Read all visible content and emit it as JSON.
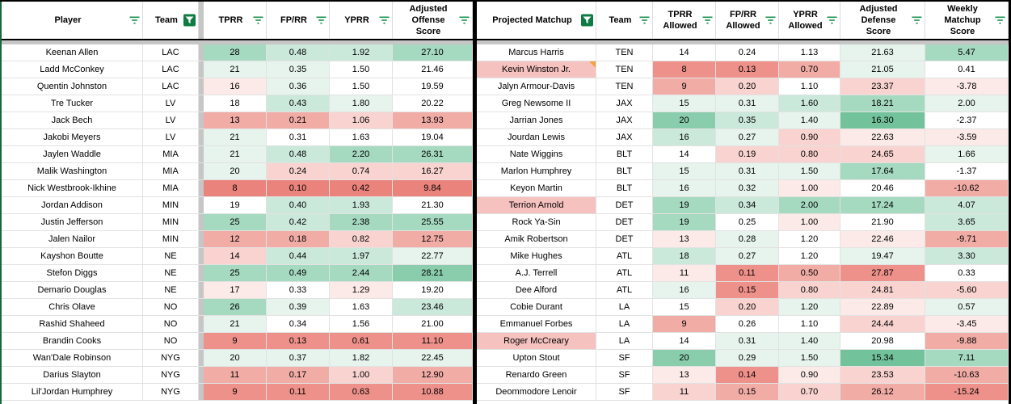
{
  "palette": {
    "5": "#72C39C",
    "4": "#8ACDAC",
    "3": "#A5D9C0",
    "2": "#CBE9DA",
    "1": "#E6F4ED",
    "0": "#FFFFFF",
    "-1": "#FCEAE8",
    "-2": "#F8D3CF",
    "-3": "#F2ACA6",
    "-4": "#EE918A",
    "-5": "#EA837B"
  },
  "highlight_pink": "#F5C2BF",
  "note_color": "#F2A33C",
  "icon_green": "#18934E",
  "filter_button_green": "#0E7C42",
  "left_table": {
    "headers": [
      {
        "label": "Player",
        "icon": "filter-lines"
      },
      {
        "label": "Team",
        "icon": "filter-active"
      },
      {
        "label": "TPRR",
        "icon": "filter-lines"
      },
      {
        "label": "FP/RR",
        "icon": "filter-lines"
      },
      {
        "label": "YPRR",
        "icon": "filter-lines"
      },
      {
        "label": "Adjusted\nOffense\nScore",
        "icon": "filter-lines"
      }
    ],
    "rows": [
      {
        "name": "Keenan Allen",
        "team": "LAC",
        "vals": [
          "28",
          "0.48",
          "1.92",
          "27.10"
        ],
        "tones": [
          3,
          2,
          2,
          3
        ]
      },
      {
        "name": "Ladd McConkey",
        "team": "LAC",
        "vals": [
          "21",
          "0.35",
          "1.50",
          "21.46"
        ],
        "tones": [
          1,
          1,
          0,
          0
        ]
      },
      {
        "name": "Quentin Johnston",
        "team": "LAC",
        "vals": [
          "16",
          "0.36",
          "1.50",
          "19.59"
        ],
        "tones": [
          -1,
          1,
          0,
          0
        ]
      },
      {
        "name": "Tre Tucker",
        "team": "LV",
        "vals": [
          "18",
          "0.43",
          "1.80",
          "20.22"
        ],
        "tones": [
          0,
          2,
          1,
          0
        ]
      },
      {
        "name": "Jack Bech",
        "team": "LV",
        "vals": [
          "13",
          "0.21",
          "1.06",
          "13.93"
        ],
        "tones": [
          -3,
          -3,
          -2,
          -3
        ]
      },
      {
        "name": "Jakobi Meyers",
        "team": "LV",
        "vals": [
          "21",
          "0.31",
          "1.63",
          "19.04"
        ],
        "tones": [
          1,
          0,
          0,
          0
        ]
      },
      {
        "name": "Jaylen Waddle",
        "team": "MIA",
        "vals": [
          "21",
          "0.48",
          "2.20",
          "26.31"
        ],
        "tones": [
          1,
          2,
          3,
          3
        ]
      },
      {
        "name": "Malik Washington",
        "team": "MIA",
        "vals": [
          "20",
          "0.24",
          "0.74",
          "16.27"
        ],
        "tones": [
          1,
          -2,
          -2,
          -2
        ]
      },
      {
        "name": "Nick Westbrook-Ikhine",
        "team": "MIA",
        "vals": [
          "8",
          "0.10",
          "0.42",
          "9.84"
        ],
        "tones": [
          -5,
          -5,
          -5,
          -5
        ]
      },
      {
        "name": "Jordan Addison",
        "team": "MIN",
        "vals": [
          "19",
          "0.40",
          "1.93",
          "21.30"
        ],
        "tones": [
          0,
          2,
          2,
          0
        ]
      },
      {
        "name": "Justin Jefferson",
        "team": "MIN",
        "vals": [
          "25",
          "0.42",
          "2.38",
          "25.55"
        ],
        "tones": [
          3,
          2,
          3,
          3
        ]
      },
      {
        "name": "Jalen Nailor",
        "team": "MIN",
        "vals": [
          "12",
          "0.18",
          "0.82",
          "12.75"
        ],
        "tones": [
          -3,
          -3,
          -2,
          -3
        ]
      },
      {
        "name": "Kayshon Boutte",
        "team": "NE",
        "vals": [
          "14",
          "0.44",
          "1.97",
          "22.77"
        ],
        "tones": [
          -2,
          2,
          2,
          1
        ]
      },
      {
        "name": "Stefon Diggs",
        "team": "NE",
        "vals": [
          "25",
          "0.49",
          "2.44",
          "28.21"
        ],
        "tones": [
          3,
          3,
          3,
          4
        ]
      },
      {
        "name": "Demario Douglas",
        "team": "NE",
        "vals": [
          "17",
          "0.33",
          "1.29",
          "19.20"
        ],
        "tones": [
          -1,
          0,
          -1,
          0
        ]
      },
      {
        "name": "Chris Olave",
        "team": "NO",
        "vals": [
          "26",
          "0.39",
          "1.63",
          "23.46"
        ],
        "tones": [
          3,
          1,
          0,
          2
        ]
      },
      {
        "name": "Rashid Shaheed",
        "team": "NO",
        "vals": [
          "21",
          "0.34",
          "1.56",
          "21.00"
        ],
        "tones": [
          1,
          0,
          0,
          0
        ]
      },
      {
        "name": "Brandin Cooks",
        "team": "NO",
        "vals": [
          "9",
          "0.13",
          "0.61",
          "11.10"
        ],
        "tones": [
          -4,
          -4,
          -4,
          -4
        ]
      },
      {
        "name": "Wan'Dale Robinson",
        "team": "NYG",
        "vals": [
          "20",
          "0.37",
          "1.82",
          "22.45"
        ],
        "tones": [
          1,
          1,
          1,
          1
        ]
      },
      {
        "name": "Darius Slayton",
        "team": "NYG",
        "vals": [
          "11",
          "0.17",
          "1.00",
          "12.90"
        ],
        "tones": [
          -3,
          -3,
          -2,
          -3
        ]
      },
      {
        "name": "Lil'Jordan Humphrey",
        "team": "NYG",
        "vals": [
          "9",
          "0.11",
          "0.63",
          "10.88"
        ],
        "tones": [
          -4,
          -4,
          -4,
          -4
        ]
      }
    ]
  },
  "right_table": {
    "headers": [
      {
        "label": "Projected Matchup",
        "icon": "filter-active"
      },
      {
        "label": "Team",
        "icon": "filter-lines"
      },
      {
        "label": "TPRR\nAllowed",
        "icon": "filter-lines"
      },
      {
        "label": "FP/RR\nAllowed",
        "icon": "filter-lines"
      },
      {
        "label": "YPRR\nAllowed",
        "icon": "filter-lines"
      },
      {
        "label": "Adjusted\nDefense\nScore",
        "icon": "filter-lines"
      },
      {
        "label": "Weekly\nMatchup\nScore",
        "icon": "filter-lines"
      }
    ],
    "rows": [
      {
        "name": "Marcus Harris",
        "team": "TEN",
        "vals": [
          "14",
          "0.24",
          "1.13",
          "21.63",
          "5.47"
        ],
        "tones": [
          0,
          0,
          0,
          1,
          3
        ]
      },
      {
        "name": "Kevin Winston Jr.",
        "team": "TEN",
        "vals": [
          "8",
          "0.13",
          "0.70",
          "21.05",
          "0.41"
        ],
        "tones": [
          -4,
          -4,
          -3,
          1,
          0
        ],
        "name_hl": true,
        "note": true
      },
      {
        "name": "Jalyn Armour-Davis",
        "team": "TEN",
        "vals": [
          "9",
          "0.20",
          "1.10",
          "23.37",
          "-3.78"
        ],
        "tones": [
          -3,
          -2,
          0,
          -2,
          -1
        ]
      },
      {
        "name": "Greg Newsome II",
        "team": "JAX",
        "vals": [
          "15",
          "0.31",
          "1.60",
          "18.21",
          "2.00"
        ],
        "tones": [
          1,
          1,
          2,
          3,
          1
        ]
      },
      {
        "name": "Jarrian Jones",
        "team": "JAX",
        "vals": [
          "20",
          "0.35",
          "1.40",
          "16.30",
          "-2.37"
        ],
        "tones": [
          4,
          2,
          1,
          5,
          0
        ]
      },
      {
        "name": "Jourdan Lewis",
        "team": "JAX",
        "vals": [
          "16",
          "0.27",
          "0.90",
          "22.63",
          "-3.59"
        ],
        "tones": [
          2,
          1,
          -2,
          -1,
          -1
        ]
      },
      {
        "name": "Nate Wiggins",
        "team": "BLT",
        "vals": [
          "14",
          "0.19",
          "0.80",
          "24.65",
          "1.66"
        ],
        "tones": [
          0,
          -2,
          -2,
          -2,
          1
        ]
      },
      {
        "name": "Marlon Humphrey",
        "team": "BLT",
        "vals": [
          "15",
          "0.31",
          "1.50",
          "17.64",
          "-1.37"
        ],
        "tones": [
          1,
          1,
          1,
          3,
          0
        ]
      },
      {
        "name": "Keyon Martin",
        "team": "BLT",
        "vals": [
          "16",
          "0.32",
          "1.00",
          "20.46",
          "-10.62"
        ],
        "tones": [
          1,
          1,
          -1,
          0,
          -3
        ]
      },
      {
        "name": "Terrion Arnold",
        "team": "DET",
        "vals": [
          "19",
          "0.34",
          "2.00",
          "17.24",
          "4.07"
        ],
        "tones": [
          3,
          2,
          3,
          3,
          2
        ],
        "name_hl": true
      },
      {
        "name": "Rock Ya-Sin",
        "team": "DET",
        "vals": [
          "19",
          "0.25",
          "1.00",
          "21.90",
          "3.65"
        ],
        "tones": [
          3,
          0,
          -1,
          0,
          2
        ]
      },
      {
        "name": "Amik Robertson",
        "team": "DET",
        "vals": [
          "13",
          "0.28",
          "1.20",
          "22.46",
          "-9.71"
        ],
        "tones": [
          -1,
          1,
          0,
          -1,
          -3
        ]
      },
      {
        "name": "Mike Hughes",
        "team": "ATL",
        "vals": [
          "18",
          "0.27",
          "1.20",
          "19.47",
          "3.30"
        ],
        "tones": [
          2,
          1,
          0,
          1,
          2
        ]
      },
      {
        "name": "A.J. Terrell",
        "team": "ATL",
        "vals": [
          "11",
          "0.11",
          "0.50",
          "27.87",
          "0.33"
        ],
        "tones": [
          -1,
          -4,
          -3,
          -4,
          0
        ]
      },
      {
        "name": "Dee Alford",
        "team": "ATL",
        "vals": [
          "16",
          "0.15",
          "0.80",
          "24.81",
          "-5.60"
        ],
        "tones": [
          1,
          -4,
          -2,
          -2,
          -2
        ]
      },
      {
        "name": "Cobie Durant",
        "team": "LA",
        "vals": [
          "15",
          "0.20",
          "1.20",
          "22.89",
          "0.57"
        ],
        "tones": [
          0,
          -2,
          1,
          -1,
          1
        ]
      },
      {
        "name": "Emmanuel Forbes",
        "team": "LA",
        "vals": [
          "9",
          "0.26",
          "1.10",
          "24.44",
          "-3.45"
        ],
        "tones": [
          -3,
          0,
          0,
          -2,
          -1
        ]
      },
      {
        "name": "Roger McCreary",
        "team": "LA",
        "vals": [
          "14",
          "0.31",
          "1.40",
          "20.98",
          "-9.88"
        ],
        "tones": [
          0,
          1,
          1,
          0,
          -3
        ],
        "name_hl": true
      },
      {
        "name": "Upton Stout",
        "team": "SF",
        "vals": [
          "20",
          "0.29",
          "1.50",
          "15.34",
          "7.11"
        ],
        "tones": [
          4,
          1,
          1,
          5,
          3
        ]
      },
      {
        "name": "Renardo Green",
        "team": "SF",
        "vals": [
          "13",
          "0.14",
          "0.90",
          "23.53",
          "-10.63"
        ],
        "tones": [
          -1,
          -4,
          -1,
          -2,
          -3
        ]
      },
      {
        "name": "Deommodore Lenoir",
        "team": "SF",
        "vals": [
          "11",
          "0.15",
          "0.70",
          "26.12",
          "-15.24"
        ],
        "tones": [
          -2,
          -3,
          -2,
          -3,
          -4
        ]
      }
    ]
  }
}
